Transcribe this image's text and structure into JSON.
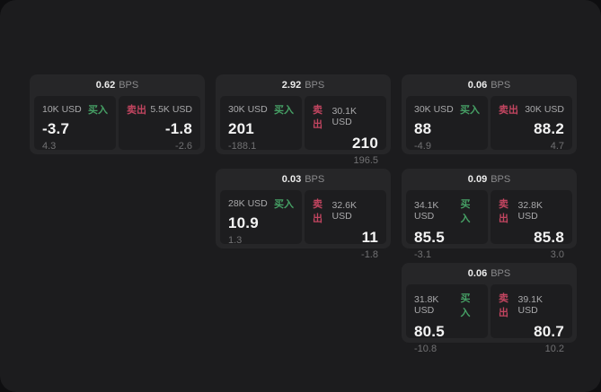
{
  "labels": {
    "bps_suffix": "BPS",
    "buy": "买入",
    "sell": "卖出"
  },
  "colors": {
    "buy_green": "#46a065",
    "sell_red": "#c24560",
    "page_background": "#1c1c1e",
    "card_background": "#262628",
    "panel_background": "#1d1d1f"
  },
  "cards": [
    {
      "col": 1,
      "bps": "0.62",
      "buy": {
        "amount": "10K USD",
        "value": "-3.7",
        "sub": "4.3"
      },
      "sell": {
        "amount": "5.5K USD",
        "value": "-1.8",
        "sub": "-2.6"
      }
    },
    {
      "col": 2,
      "bps": "2.92",
      "buy": {
        "amount": "30K USD",
        "value": "201",
        "sub": "-188.1"
      },
      "sell": {
        "amount": "30.1K USD",
        "value": "210",
        "sub": "196.5"
      }
    },
    {
      "col": 2,
      "bps": "0.03",
      "buy": {
        "amount": "28K USD",
        "value": "10.9",
        "sub": "1.3"
      },
      "sell": {
        "amount": "32.6K USD",
        "value": "11",
        "sub": "-1.8"
      }
    },
    {
      "col": 3,
      "bps": "0.06",
      "buy": {
        "amount": "30K USD",
        "value": "88",
        "sub": "-4.9"
      },
      "sell": {
        "amount": "30K USD",
        "value": "88.2",
        "sub": "4.7"
      }
    },
    {
      "col": 3,
      "bps": "0.09",
      "buy": {
        "amount": "34.1K USD",
        "value": "85.5",
        "sub": "-3.1"
      },
      "sell": {
        "amount": "32.8K USD",
        "value": "85.8",
        "sub": "3.0"
      }
    },
    {
      "col": 3,
      "bps": "0.06",
      "buy": {
        "amount": "31.8K USD",
        "value": "80.5",
        "sub": "-10.8"
      },
      "sell": {
        "amount": "39.1K USD",
        "value": "80.7",
        "sub": "10.2"
      }
    }
  ]
}
